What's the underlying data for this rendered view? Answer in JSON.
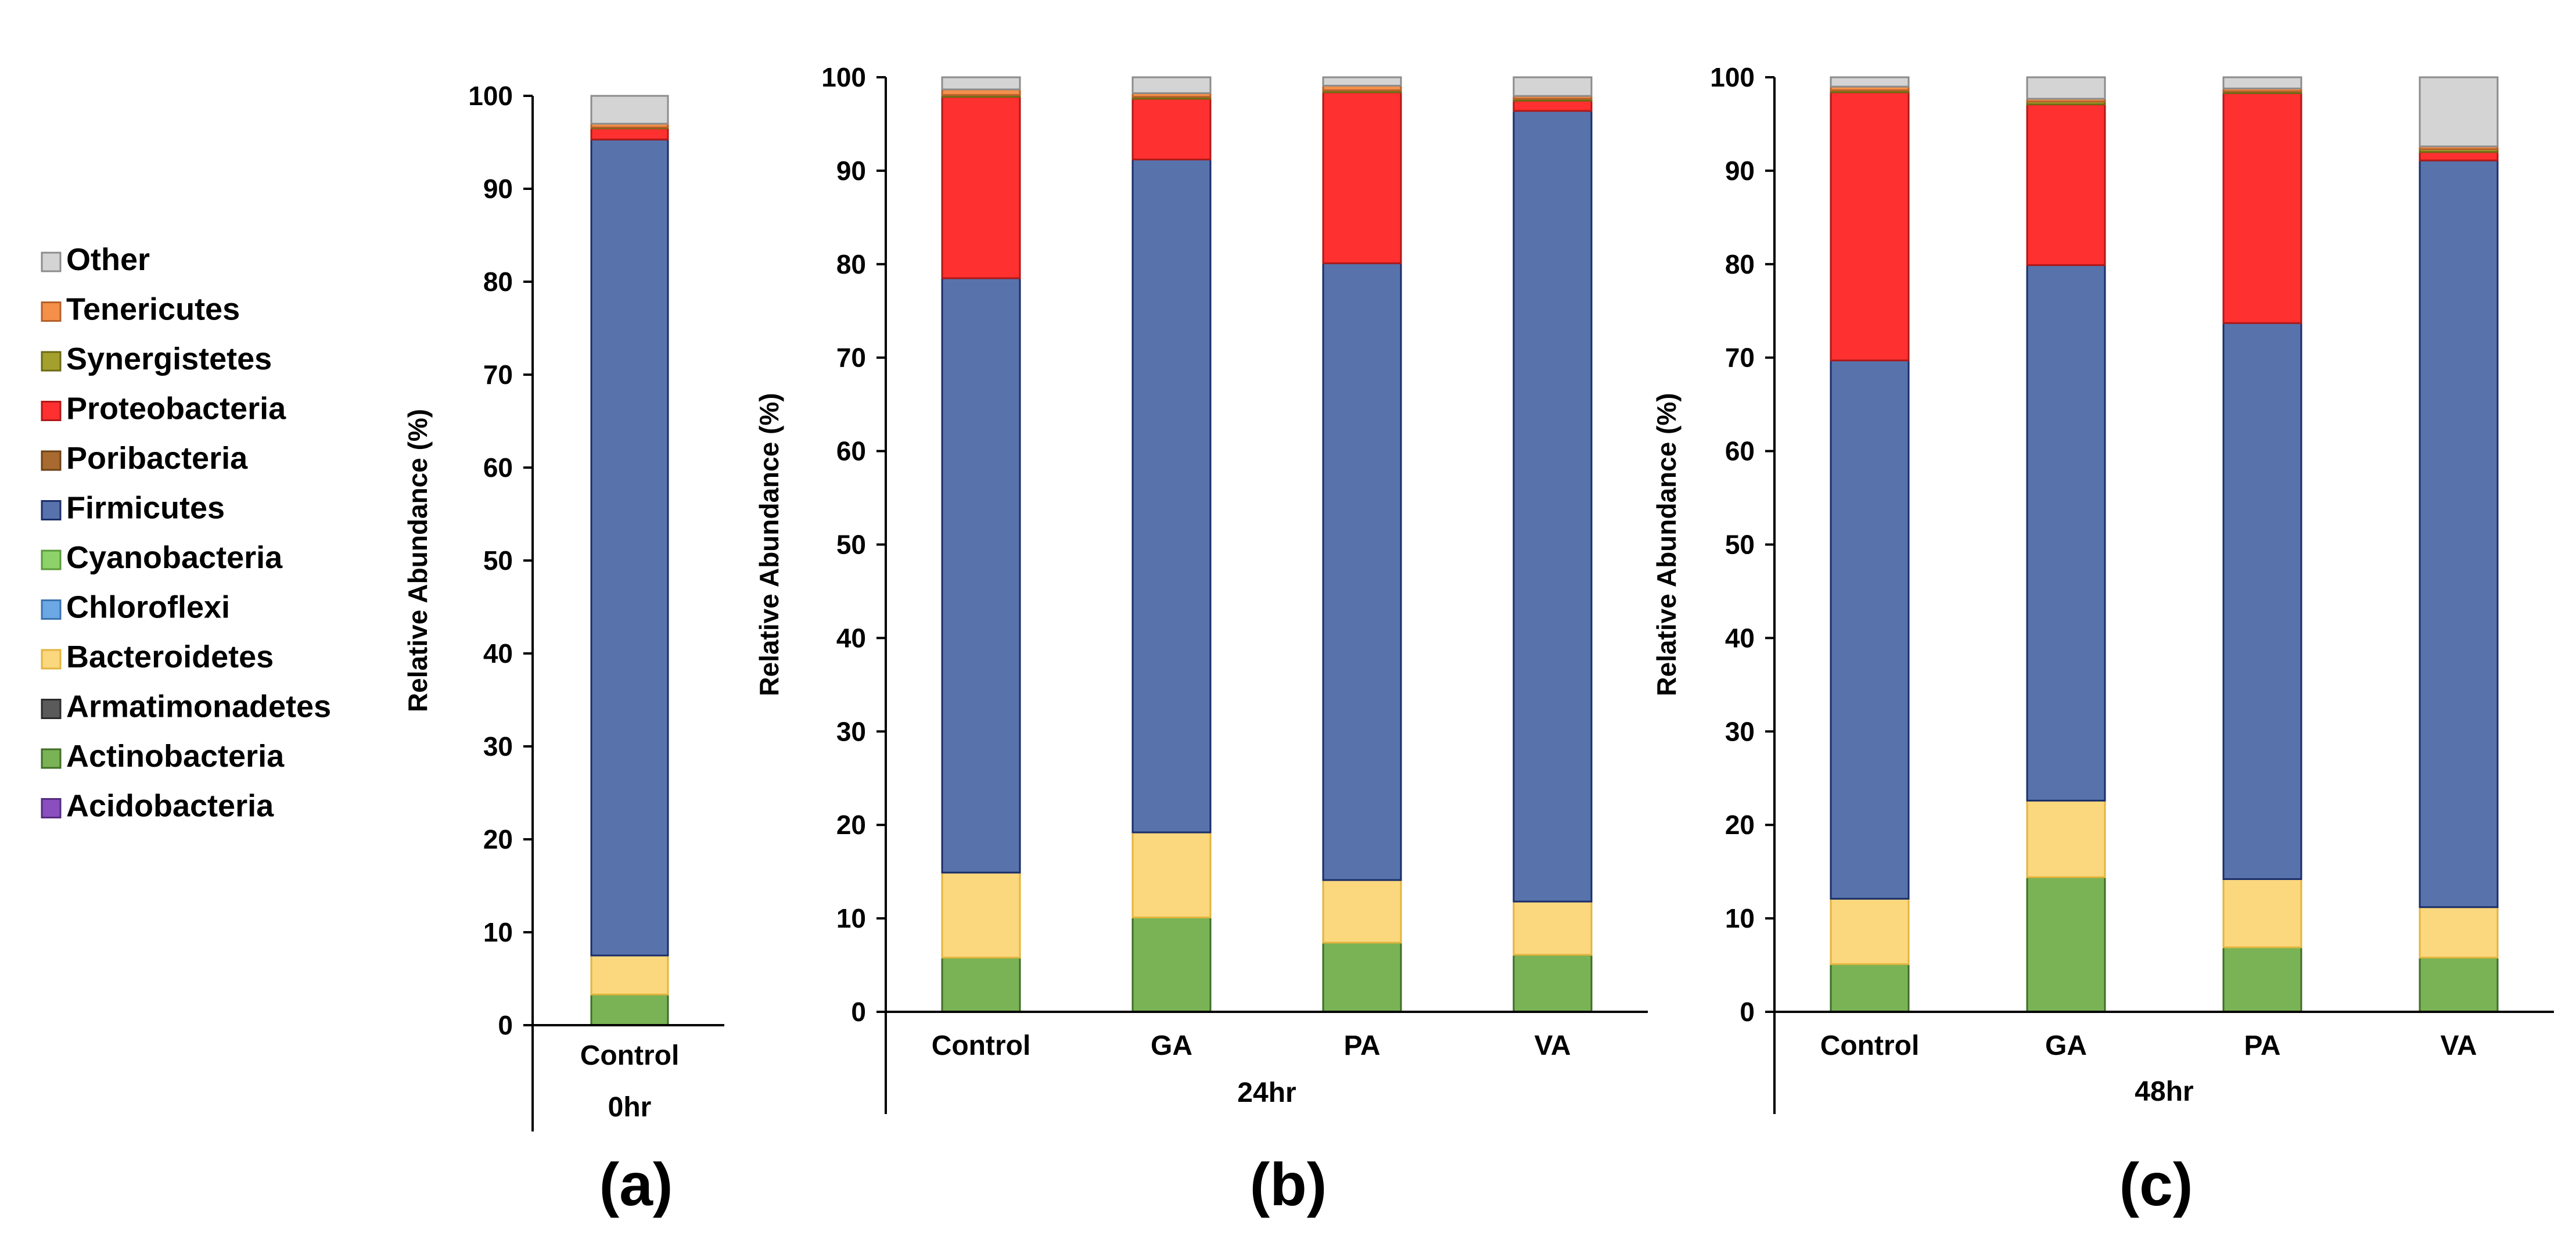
{
  "legend": [
    {
      "name": "Other",
      "color": "#d4d4d4",
      "border": "#8c8c8c"
    },
    {
      "name": "Tenericutes",
      "color": "#f4904a",
      "border": "#b5602a"
    },
    {
      "name": "Synergistetes",
      "color": "#a3a02e",
      "border": "#6d6a14"
    },
    {
      "name": "Proteobacteria",
      "color": "#ff3030",
      "border": "#b01818"
    },
    {
      "name": "Poribacteria",
      "color": "#a86a30",
      "border": "#6e4114"
    },
    {
      "name": "Firmicutes",
      "color": "#5873ab",
      "border": "#1b2e6b"
    },
    {
      "name": "Cyanobacteria",
      "color": "#8ed36a",
      "border": "#5a9a3a"
    },
    {
      "name": "Chloroflexi",
      "color": "#6ca8e4",
      "border": "#3a73b0"
    },
    {
      "name": "Bacteroidetes",
      "color": "#fbd77e",
      "border": "#e2b53e"
    },
    {
      "name": "Armatimonadetes",
      "color": "#5a5a5a",
      "border": "#2a2a2a"
    },
    {
      "name": "Actinobacteria",
      "color": "#7ab356",
      "border": "#3f6e26"
    },
    {
      "name": "Acidobacteria",
      "color": "#8a4fbf",
      "border": "#552a80"
    }
  ],
  "chart_data": [
    {
      "type": "bar",
      "stacked": true,
      "panel_label": "(a)",
      "group_label": "0hr",
      "ylabel": "Relative Abundance (%)",
      "ylim": [
        0,
        100
      ],
      "yticks": [
        "0",
        "10",
        "20",
        "30",
        "40",
        "50",
        "60",
        "70",
        "80",
        "90",
        "100"
      ],
      "categories": [
        "Control"
      ],
      "series": [
        {
          "name": "Actinobacteria",
          "values": [
            3.3
          ]
        },
        {
          "name": "Bacteroidetes",
          "values": [
            4.2
          ]
        },
        {
          "name": "Firmicutes",
          "values": [
            87.8
          ]
        },
        {
          "name": "Proteobacteria",
          "values": [
            1.2
          ]
        },
        {
          "name": "Synergistetes",
          "values": [
            0.1
          ]
        },
        {
          "name": "Tenericutes",
          "values": [
            0.4
          ]
        },
        {
          "name": "Other",
          "values": [
            3.0
          ]
        }
      ]
    },
    {
      "type": "bar",
      "stacked": true,
      "panel_label": "(b)",
      "group_label": "24hr",
      "ylabel": "Relative Abundance (%)",
      "ylim": [
        0,
        100
      ],
      "yticks": [
        "0",
        "10",
        "20",
        "30",
        "40",
        "50",
        "60",
        "70",
        "80",
        "90",
        "100"
      ],
      "categories": [
        "Control",
        "GA",
        "PA",
        "VA"
      ],
      "series": [
        {
          "name": "Actinobacteria",
          "values": [
            5.8,
            10.1,
            7.4,
            6.1
          ]
        },
        {
          "name": "Bacteroidetes",
          "values": [
            9.1,
            9.1,
            6.7,
            5.7
          ]
        },
        {
          "name": "Firmicutes",
          "values": [
            63.6,
            72.0,
            66.0,
            84.6
          ]
        },
        {
          "name": "Proteobacteria",
          "values": [
            19.4,
            6.5,
            18.3,
            1.1
          ]
        },
        {
          "name": "Synergistetes",
          "values": [
            0.2,
            0.2,
            0.2,
            0.2
          ]
        },
        {
          "name": "Tenericutes",
          "values": [
            0.6,
            0.4,
            0.5,
            0.3
          ]
        },
        {
          "name": "Other",
          "values": [
            1.3,
            1.7,
            0.9,
            2.0
          ]
        }
      ]
    },
    {
      "type": "bar",
      "stacked": true,
      "panel_label": "(c)",
      "group_label": "48hr",
      "ylabel": "Relative Abundance (%)",
      "ylim": [
        0,
        100
      ],
      "yticks": [
        "0",
        "10",
        "20",
        "30",
        "40",
        "50",
        "60",
        "70",
        "80",
        "90",
        "100"
      ],
      "categories": [
        "Control",
        "GA",
        "PA",
        "VA"
      ],
      "series": [
        {
          "name": "Actinobacteria",
          "values": [
            5.1,
            14.4,
            6.9,
            5.8
          ]
        },
        {
          "name": "Bacteroidetes",
          "values": [
            7.0,
            8.2,
            7.3,
            5.4
          ]
        },
        {
          "name": "Firmicutes",
          "values": [
            57.6,
            57.3,
            59.5,
            79.9
          ]
        },
        {
          "name": "Proteobacteria",
          "values": [
            28.7,
            17.2,
            24.6,
            0.9
          ]
        },
        {
          "name": "Synergistetes",
          "values": [
            0.2,
            0.3,
            0.2,
            0.3
          ]
        },
        {
          "name": "Tenericutes",
          "values": [
            0.4,
            0.3,
            0.3,
            0.3
          ]
        },
        {
          "name": "Other",
          "values": [
            1.0,
            2.3,
            1.2,
            7.4
          ]
        }
      ]
    }
  ]
}
